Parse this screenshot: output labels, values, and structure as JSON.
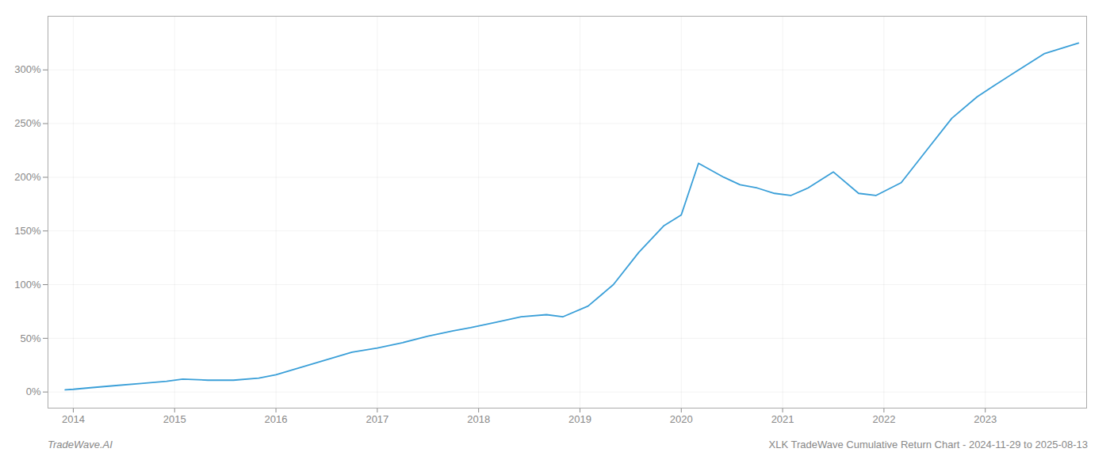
{
  "chart_data": {
    "type": "line",
    "x": [
      2013.92,
      2014.0,
      2014.17,
      2014.42,
      2014.67,
      2014.92,
      2015.08,
      2015.33,
      2015.58,
      2015.83,
      2016.0,
      2016.25,
      2016.5,
      2016.75,
      2017.0,
      2017.25,
      2017.5,
      2017.75,
      2017.92,
      2018.17,
      2018.42,
      2018.67,
      2018.83,
      2019.08,
      2019.33,
      2019.58,
      2019.83,
      2020.0,
      2020.17,
      2020.42,
      2020.58,
      2020.75,
      2020.92,
      2021.08,
      2021.25,
      2021.5,
      2021.75,
      2021.92,
      2022.17,
      2022.42,
      2022.67,
      2022.92,
      2023.08,
      2023.33,
      2023.58,
      2023.75,
      2023.92
    ],
    "values": [
      2,
      2.5,
      4,
      6,
      8,
      10,
      12,
      11,
      11,
      13,
      16,
      23,
      30,
      37,
      41,
      46,
      52,
      57,
      60,
      65,
      70,
      72,
      70,
      80,
      100,
      130,
      155,
      165,
      213,
      200,
      193,
      190,
      185,
      183,
      190,
      205,
      185,
      183,
      195,
      225,
      255,
      275,
      285,
      300,
      315,
      320,
      325
    ],
    "color": "#3a9fd8",
    "xlim": [
      2013.75,
      2024.0
    ],
    "xticks": [
      2014,
      2015,
      2016,
      2017,
      2018,
      2019,
      2020,
      2021,
      2022,
      2023
    ],
    "ylim": [
      -15,
      350
    ],
    "yticks": [
      {
        "value": 0,
        "label": "0%"
      },
      {
        "value": 50,
        "label": "50%"
      },
      {
        "value": 100,
        "label": "100%"
      },
      {
        "value": 150,
        "label": "150%"
      },
      {
        "value": 200,
        "label": "200%"
      },
      {
        "value": 250,
        "label": "250%"
      },
      {
        "value": 300,
        "label": "300%"
      }
    ],
    "grid": true,
    "annotations": [
      "TradeWave.AI",
      "XLK TradeWave Cumulative Return Chart - 2024-11-29 to 2025-08-13"
    ]
  }
}
